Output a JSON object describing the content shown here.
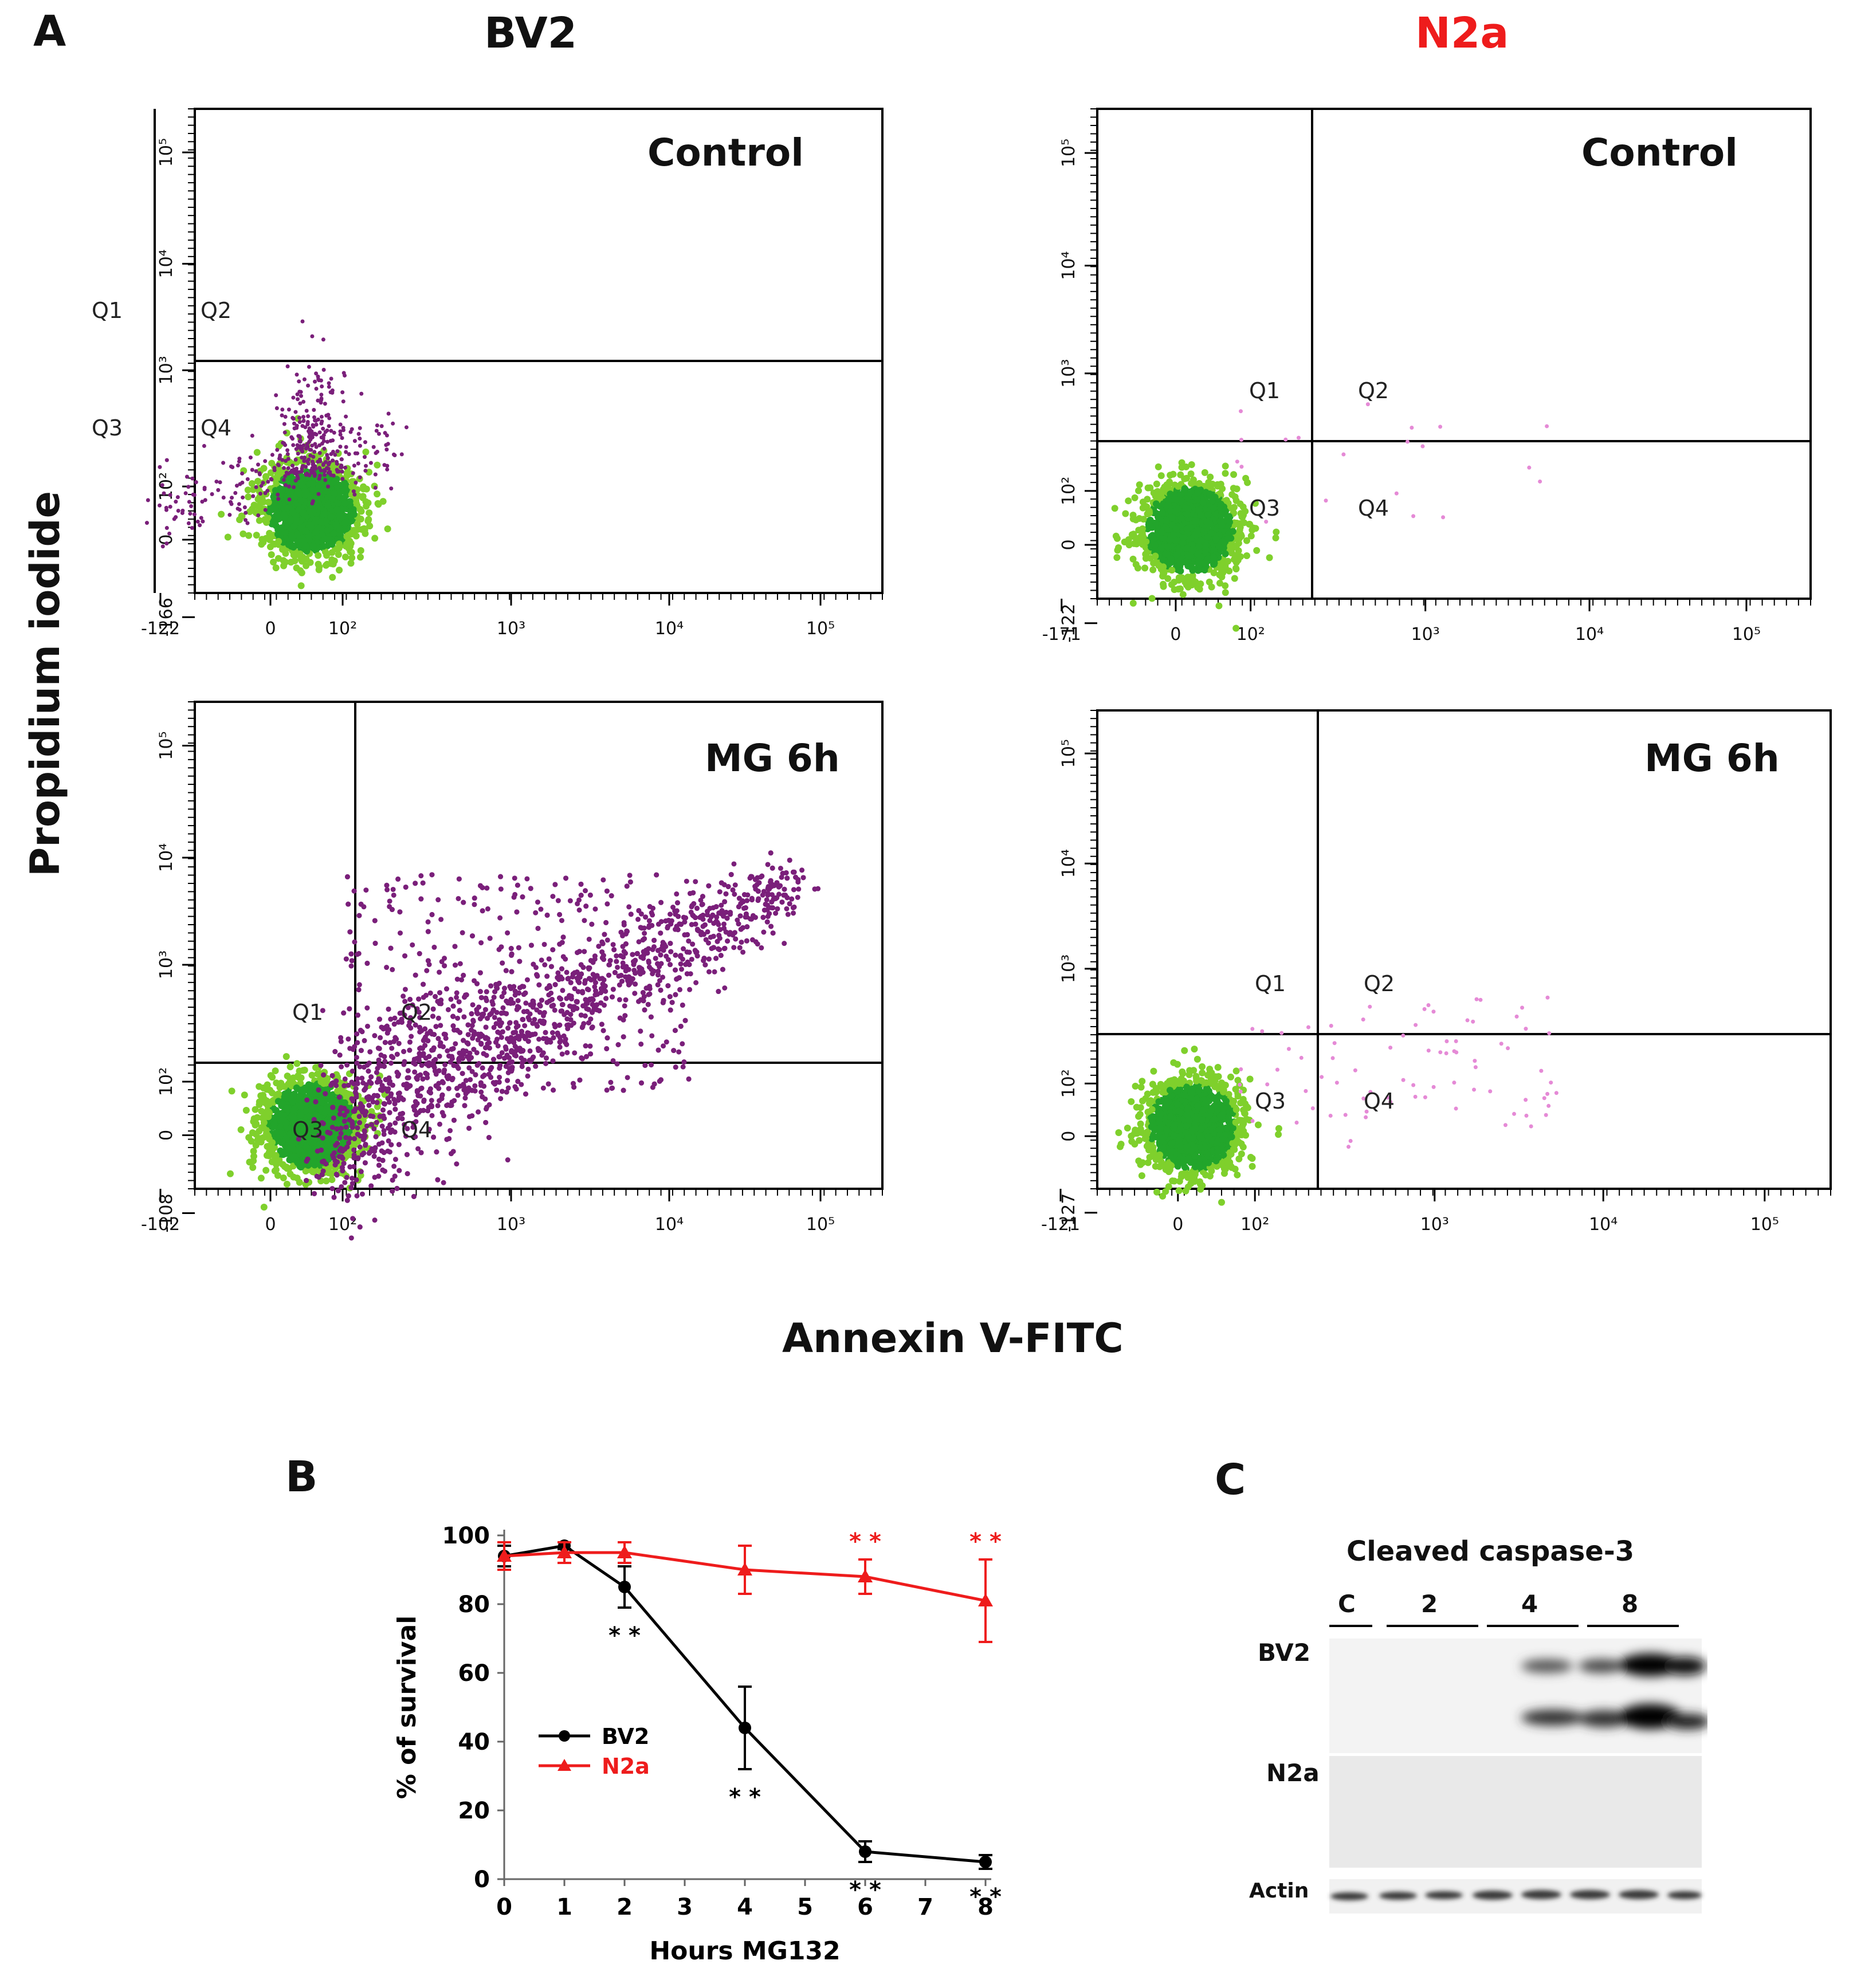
{
  "figure": {
    "panel_a_letter": "A",
    "panel_b_letter": "B",
    "panel_c_letter": "C",
    "col_bv2": "BV2",
    "col_n2a": "N2a",
    "y_title": "Propidium iodide",
    "x_title": "Annexin V-FITC",
    "colors": {
      "black": "#000000",
      "red": "#ee1c1c",
      "purple": "#7a1f7a",
      "green": "#22a52b",
      "light_green": "#7fd02c"
    }
  },
  "flow_plots": [
    {
      "id": "bv2-control",
      "label": "Control",
      "x_ticks": [
        "-122",
        "0",
        "10²",
        "10³",
        "10⁴",
        "10⁵"
      ],
      "y_ticks": [
        "-166",
        "0",
        "10²",
        "10³",
        "10⁴",
        "10⁵"
      ],
      "quadrants": [
        "Q1",
        "Q2",
        "Q3",
        "Q4"
      ]
    },
    {
      "id": "n2a-control",
      "label": "Control",
      "x_ticks": [
        "-171",
        "0",
        "10²",
        "10³",
        "10⁴",
        "10⁵"
      ],
      "y_ticks": [
        "-122",
        "0",
        "10²",
        "10³",
        "10⁴",
        "10⁵"
      ],
      "quadrants": [
        "Q1",
        "Q2",
        "Q3",
        "Q4"
      ]
    },
    {
      "id": "bv2-mg6h",
      "label": "MG 6h",
      "x_ticks": [
        "-102",
        "0",
        "10²",
        "10³",
        "10⁴",
        "10⁵"
      ],
      "y_ticks": [
        "-108",
        "0",
        "10²",
        "10³",
        "10⁴",
        "10⁵"
      ],
      "quadrants": [
        "Q1",
        "Q2",
        "Q3",
        "Q4"
      ]
    },
    {
      "id": "n2a-mg6h",
      "label": "MG 6h",
      "x_ticks": [
        "-121",
        "0",
        "10²",
        "10³",
        "10⁴",
        "10⁵"
      ],
      "y_ticks": [
        "-127",
        "0",
        "10²",
        "10³",
        "10⁴",
        "10⁵"
      ],
      "quadrants": [
        "Q1",
        "Q2",
        "Q3",
        "Q4"
      ]
    }
  ],
  "chart_data": [
    {
      "type": "line",
      "title": "",
      "xlabel": "Hours MG132",
      "ylabel": "% of survival",
      "xlim": [
        0,
        8
      ],
      "ylim": [
        0,
        100
      ],
      "x_ticks": [
        0,
        1,
        2,
        3,
        4,
        5,
        6,
        7,
        8
      ],
      "y_ticks": [
        0,
        20,
        40,
        60,
        80,
        100
      ],
      "series": [
        {
          "name": "BV2",
          "color": "#000000",
          "marker": "circle",
          "x": [
            0,
            1,
            2,
            4,
            6,
            8
          ],
          "y": [
            94,
            97,
            85,
            44,
            8,
            5
          ],
          "err": [
            3,
            1,
            6,
            12,
            3,
            2
          ],
          "significance": [
            "",
            "",
            "* *",
            "* *",
            "* *",
            "* *"
          ]
        },
        {
          "name": "N2a",
          "color": "#ee1c1c",
          "marker": "triangle",
          "x": [
            0,
            1,
            2,
            4,
            6,
            8
          ],
          "y": [
            94,
            95,
            95,
            90,
            88,
            81
          ],
          "err": [
            4,
            3,
            3,
            7,
            5,
            12
          ],
          "significance": [
            "",
            "",
            "",
            "",
            "* *",
            "* *"
          ]
        }
      ],
      "legend": "center-left"
    }
  ],
  "blot": {
    "title": "Cleaved caspase-3",
    "lanes": [
      "C",
      "2",
      "4",
      "8"
    ],
    "rows": [
      "BV2",
      "N2a",
      "Actin"
    ]
  }
}
